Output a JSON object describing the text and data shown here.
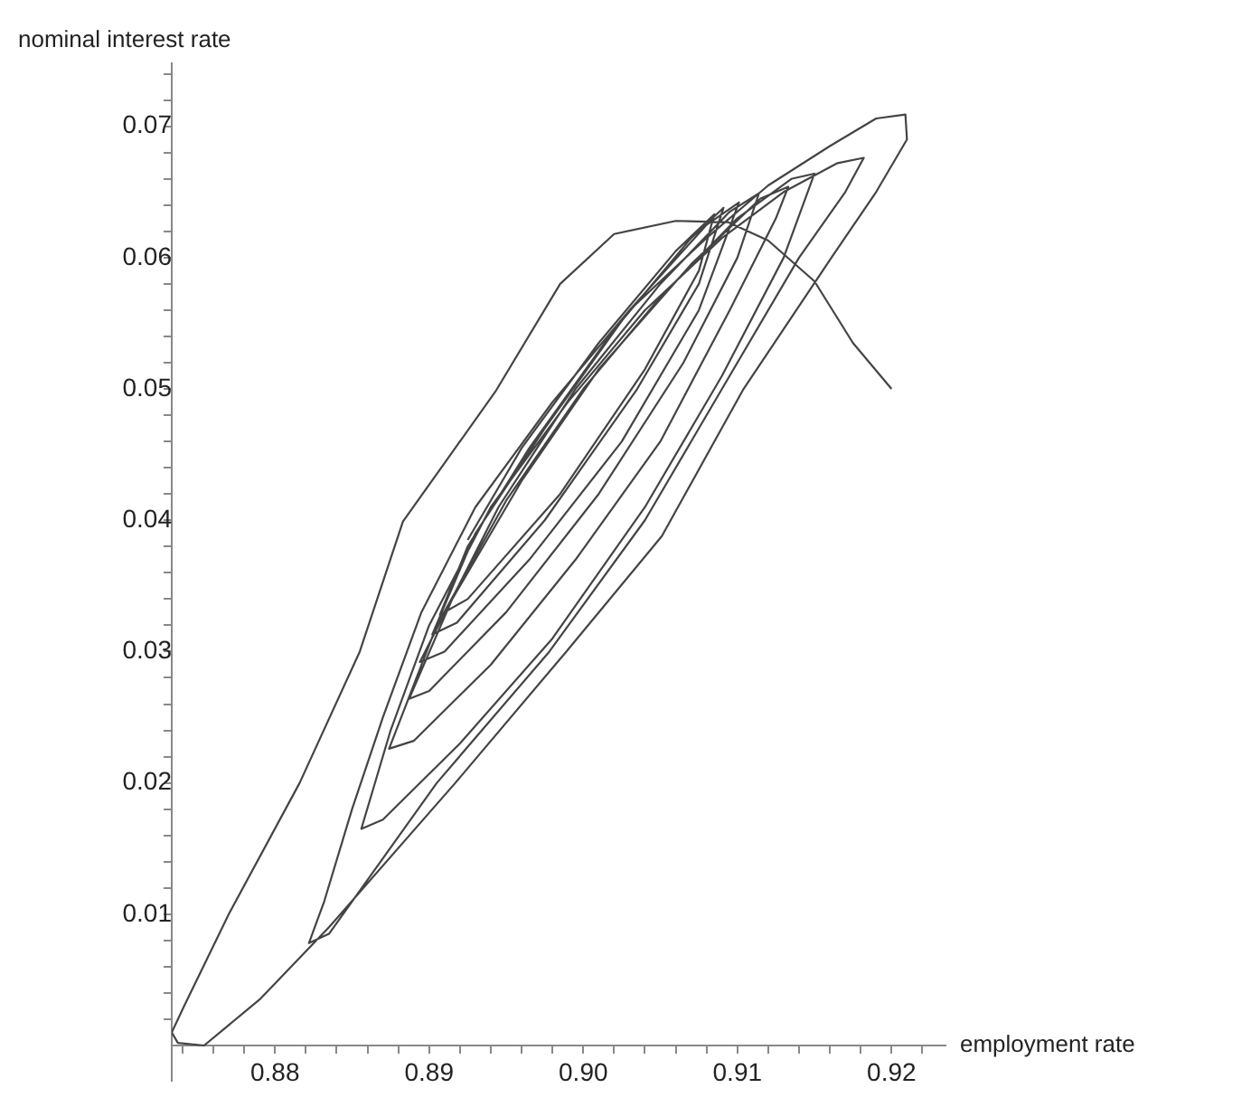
{
  "chart_data": {
    "type": "line",
    "xlabel": "employment rate",
    "ylabel": "nominal interest rate",
    "xlim": [
      0.8733,
      0.9235
    ],
    "ylim": [
      -0.0027,
      0.0748
    ],
    "xticks": [
      {
        "value": 0.874,
        "label": null
      },
      {
        "value": 0.876,
        "label": null
      },
      {
        "value": 0.878,
        "label": null
      },
      0.88,
      {
        "value": 0.882,
        "label": null
      },
      {
        "value": 0.884,
        "label": null
      },
      {
        "value": 0.886,
        "label": null
      },
      {
        "value": 0.888,
        "label": null
      },
      0.89,
      {
        "value": 0.892,
        "label": null
      },
      {
        "value": 0.894,
        "label": null
      },
      {
        "value": 0.896,
        "label": null
      },
      {
        "value": 0.898,
        "label": null
      },
      {
        "value": 0.9,
        "label": "0.90"
      },
      {
        "value": 0.902,
        "label": null
      },
      {
        "value": 0.904,
        "label": null
      },
      {
        "value": 0.906,
        "label": null
      },
      {
        "value": 0.908,
        "label": null
      },
      0.91,
      {
        "value": 0.912,
        "label": null
      },
      {
        "value": 0.914,
        "label": null
      },
      {
        "value": 0.916,
        "label": null
      },
      {
        "value": 0.918,
        "label": null
      },
      0.92,
      {
        "value": 0.922,
        "label": null
      }
    ],
    "yticks": [
      {
        "value": 0.002,
        "label": null
      },
      {
        "value": 0.004,
        "label": null
      },
      {
        "value": 0.006,
        "label": null
      },
      {
        "value": 0.008,
        "label": null
      },
      0.01,
      {
        "value": 0.012,
        "label": null
      },
      {
        "value": 0.014,
        "label": null
      },
      {
        "value": 0.016,
        "label": null
      },
      {
        "value": 0.018,
        "label": null
      },
      0.02,
      {
        "value": 0.022,
        "label": null
      },
      {
        "value": 0.024,
        "label": null
      },
      {
        "value": 0.026,
        "label": null
      },
      {
        "value": 0.028,
        "label": null
      },
      0.03,
      {
        "value": 0.032,
        "label": null
      },
      {
        "value": 0.034,
        "label": null
      },
      {
        "value": 0.036,
        "label": null
      },
      {
        "value": 0.038,
        "label": null
      },
      0.04,
      {
        "value": 0.042,
        "label": null
      },
      {
        "value": 0.044,
        "label": null
      },
      {
        "value": 0.046,
        "label": null
      },
      {
        "value": 0.048,
        "label": null
      },
      0.05,
      {
        "value": 0.052,
        "label": null
      },
      {
        "value": 0.054,
        "label": null
      },
      {
        "value": 0.056,
        "label": null
      },
      {
        "value": 0.058,
        "label": null
      },
      0.06,
      {
        "value": 0.062,
        "label": null
      },
      {
        "value": 0.064,
        "label": null
      },
      {
        "value": 0.066,
        "label": null
      },
      {
        "value": 0.068,
        "label": null
      },
      0.07,
      {
        "value": 0.072,
        "label": null
      },
      {
        "value": 0.074,
        "label": null
      }
    ],
    "grid": false,
    "legend": false,
    "series": [
      {
        "color": "#444444",
        "x": [
          0.92,
          0.9175,
          0.915,
          0.912,
          0.9094,
          0.906,
          0.902,
          0.8985,
          0.8943,
          0.8883,
          0.8855,
          0.8816,
          0.877,
          0.8741,
          0.8733,
          0.8737,
          0.8754,
          0.879,
          0.8835,
          0.8917,
          0.8989,
          0.9051,
          0.9104,
          0.9161,
          0.919,
          0.921,
          0.9209,
          0.919,
          0.916,
          0.912,
          0.908,
          0.903,
          0.898,
          0.893,
          0.8895,
          0.887,
          0.885,
          0.8832,
          0.8822,
          0.8835,
          0.8905,
          0.8978,
          0.904,
          0.909,
          0.914,
          0.917,
          0.9182,
          0.9165,
          0.913,
          0.909,
          0.904,
          0.899,
          0.894,
          0.89,
          0.8875,
          0.8856,
          0.887,
          0.892,
          0.898,
          0.904,
          0.909,
          0.913,
          0.915,
          0.9135,
          0.91,
          0.905,
          0.9,
          0.895,
          0.8905,
          0.8874,
          0.889,
          0.894,
          0.8995,
          0.905,
          0.9095,
          0.9125,
          0.9133,
          0.9115,
          0.907,
          0.901,
          0.896,
          0.8915,
          0.8887,
          0.89,
          0.895,
          0.901,
          0.9065,
          0.91,
          0.9114,
          0.9095,
          0.905,
          0.8995,
          0.8945,
          0.8894,
          0.891,
          0.8965,
          0.9025,
          0.9075,
          0.9101,
          0.908,
          0.903,
          0.8975,
          0.893,
          0.8902,
          0.8918,
          0.8975,
          0.9035,
          0.9075,
          0.9091,
          0.907,
          0.902,
          0.8965,
          0.8925,
          0.8907,
          0.8925,
          0.8985,
          0.904,
          0.9075,
          0.9085,
          0.906,
          0.901,
          0.896,
          0.8925
        ],
        "values": [
          0.05,
          0.0535,
          0.0582,
          0.0613,
          0.0627,
          0.0628,
          0.0618,
          0.058,
          0.0498,
          0.0399,
          0.03,
          0.02,
          0.01,
          0.003,
          0.001,
          0.0002,
          0,
          0.0035,
          0.009,
          0.02,
          0.03,
          0.0388,
          0.05,
          0.06,
          0.065,
          0.069,
          0.0709,
          0.0706,
          0.0685,
          0.0655,
          0.0615,
          0.056,
          0.049,
          0.041,
          0.033,
          0.025,
          0.018,
          0.011,
          0.0078,
          0.0085,
          0.02,
          0.03,
          0.04,
          0.05,
          0.06,
          0.065,
          0.0676,
          0.0672,
          0.065,
          0.0615,
          0.056,
          0.049,
          0.041,
          0.032,
          0.024,
          0.0165,
          0.0172,
          0.023,
          0.031,
          0.041,
          0.051,
          0.06,
          0.0664,
          0.066,
          0.063,
          0.057,
          0.05,
          0.0415,
          0.032,
          0.0226,
          0.0232,
          0.029,
          0.037,
          0.046,
          0.056,
          0.063,
          0.0654,
          0.0645,
          0.0595,
          0.0515,
          0.043,
          0.034,
          0.0264,
          0.027,
          0.033,
          0.042,
          0.052,
          0.06,
          0.0649,
          0.0635,
          0.058,
          0.05,
          0.041,
          0.0292,
          0.03,
          0.037,
          0.046,
          0.056,
          0.0642,
          0.0625,
          0.056,
          0.047,
          0.039,
          0.0313,
          0.0322,
          0.04,
          0.05,
          0.058,
          0.0638,
          0.0615,
          0.0545,
          0.0455,
          0.038,
          0.0328,
          0.034,
          0.042,
          0.0515,
          0.059,
          0.0633,
          0.0605,
          0.0535,
          0.0455,
          0.0385
        ]
      }
    ]
  }
}
